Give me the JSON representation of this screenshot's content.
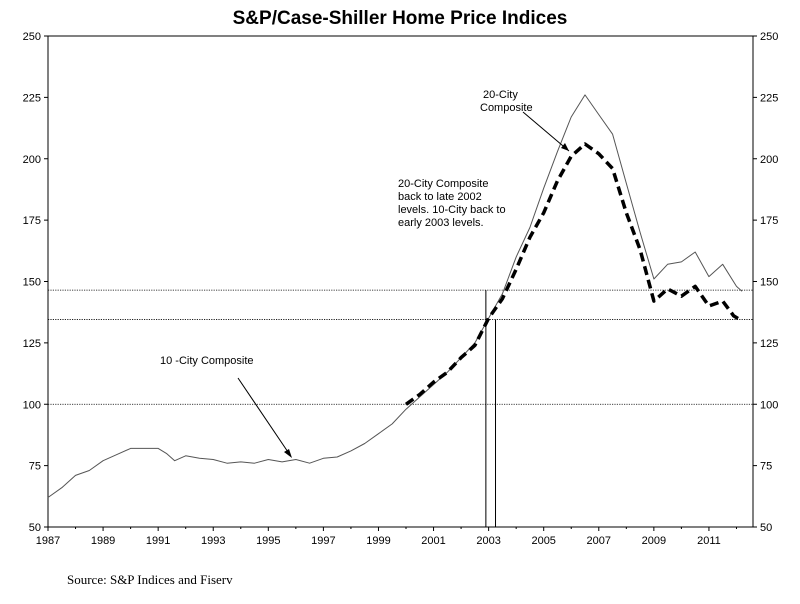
{
  "chart_data": {
    "type": "line",
    "title": "S&P/Case-Shiller Home Price Indices",
    "source": "Source: S&P Indices and Fiserv",
    "xlim": [
      1987,
      2012.6
    ],
    "ylim": [
      50,
      250
    ],
    "y_ticks": [
      50,
      75,
      100,
      125,
      150,
      175,
      200,
      225,
      250
    ],
    "x_ticks": [
      1987,
      1989,
      1991,
      1993,
      1995,
      1997,
      1999,
      2001,
      2003,
      2005,
      2007,
      2009,
      2011
    ],
    "grid": false,
    "legend": "none",
    "series": [
      {
        "name": "10 -City Composite",
        "style": "solid",
        "color": "#555555",
        "points": [
          [
            1987.0,
            62
          ],
          [
            1987.5,
            66
          ],
          [
            1988.0,
            71
          ],
          [
            1988.5,
            73
          ],
          [
            1989.0,
            77
          ],
          [
            1989.5,
            79.5
          ],
          [
            1990.0,
            82
          ],
          [
            1990.5,
            82
          ],
          [
            1991.0,
            82
          ],
          [
            1991.3,
            80
          ],
          [
            1991.6,
            77
          ],
          [
            1992.0,
            79
          ],
          [
            1992.5,
            78
          ],
          [
            1993.0,
            77.5
          ],
          [
            1993.5,
            76
          ],
          [
            1994.0,
            76.5
          ],
          [
            1994.5,
            76
          ],
          [
            1995.0,
            77.5
          ],
          [
            1995.5,
            76.5
          ],
          [
            1996.0,
            77.5
          ],
          [
            1996.5,
            76
          ],
          [
            1997.0,
            78
          ],
          [
            1997.5,
            78.5
          ],
          [
            1998.0,
            81
          ],
          [
            1998.5,
            84
          ],
          [
            1999.0,
            88
          ],
          [
            1999.5,
            92
          ],
          [
            2000.0,
            98
          ],
          [
            2000.5,
            103
          ],
          [
            2001.0,
            108
          ],
          [
            2001.5,
            113
          ],
          [
            2002.0,
            119
          ],
          [
            2002.5,
            125
          ],
          [
            2003.0,
            135
          ],
          [
            2003.5,
            145
          ],
          [
            2004.0,
            160
          ],
          [
            2004.5,
            172
          ],
          [
            2005.0,
            188
          ],
          [
            2005.5,
            203
          ],
          [
            2006.0,
            217
          ],
          [
            2006.5,
            226
          ],
          [
            2007.0,
            218
          ],
          [
            2007.5,
            210
          ],
          [
            2008.0,
            190
          ],
          [
            2008.5,
            170
          ],
          [
            2009.0,
            151
          ],
          [
            2009.5,
            157
          ],
          [
            2010.0,
            158
          ],
          [
            2010.5,
            162
          ],
          [
            2011.0,
            152
          ],
          [
            2011.5,
            157
          ],
          [
            2012.0,
            148
          ],
          [
            2012.2,
            146
          ]
        ]
      },
      {
        "name": "20-City Composite",
        "style": "dashed",
        "color": "#000000",
        "points": [
          [
            2000.0,
            100
          ],
          [
            2000.5,
            104
          ],
          [
            2001.0,
            109
          ],
          [
            2001.5,
            113
          ],
          [
            2002.0,
            119
          ],
          [
            2002.5,
            124
          ],
          [
            2003.0,
            135
          ],
          [
            2003.5,
            143
          ],
          [
            2004.0,
            155
          ],
          [
            2004.5,
            168
          ],
          [
            2005.0,
            178
          ],
          [
            2005.5,
            191
          ],
          [
            2006.0,
            201
          ],
          [
            2006.5,
            206
          ],
          [
            2007.0,
            202
          ],
          [
            2007.5,
            196
          ],
          [
            2008.0,
            178
          ],
          [
            2008.5,
            163
          ],
          [
            2009.0,
            142
          ],
          [
            2009.5,
            147
          ],
          [
            2010.0,
            144
          ],
          [
            2010.5,
            148
          ],
          [
            2011.0,
            140
          ],
          [
            2011.5,
            142
          ],
          [
            2011.9,
            136
          ],
          [
            2012.2,
            134
          ]
        ]
      }
    ],
    "reference_lines": [
      {
        "y": 146.5,
        "style": "dotted"
      },
      {
        "y": 134.5,
        "style": "dotted"
      },
      {
        "y": 100,
        "style": "dotted"
      }
    ],
    "vertical_markers": [
      {
        "x": 2002.9,
        "y_top": 146.5
      },
      {
        "x": 2003.25,
        "y_top": 134.5
      }
    ],
    "annotations": [
      {
        "lines": [
          "20-City",
          "Composite"
        ]
      },
      {
        "lines": [
          "20-City Composite",
          "back to late 2002",
          "levels.  10-City back to",
          "early 2003 levels."
        ]
      },
      {
        "lines": [
          "10 -City Composite"
        ]
      }
    ]
  }
}
